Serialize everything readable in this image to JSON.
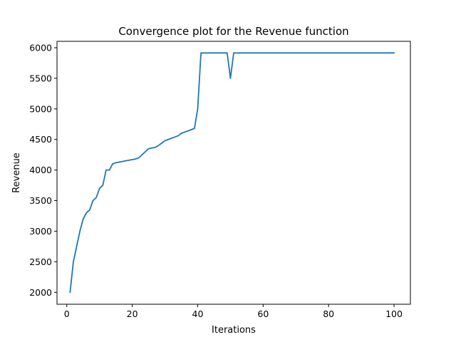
{
  "chart_data": {
    "type": "line",
    "title": "Convergence plot for the Revenue function",
    "xlabel": "Iterations",
    "ylabel": "Revenue",
    "xlim": [
      -3,
      105
    ],
    "ylim": [
      1805,
      6105
    ],
    "xticks": [
      0,
      20,
      40,
      60,
      80,
      100
    ],
    "yticks": [
      2000,
      2500,
      3000,
      3500,
      4000,
      4500,
      5000,
      5500,
      6000
    ],
    "grid": false,
    "legend": "none",
    "series": [
      {
        "color": "#1f77b4",
        "x": [
          1,
          2,
          3,
          4,
          5,
          6,
          7,
          8,
          9,
          10,
          11,
          12,
          13,
          14,
          15,
          16,
          17,
          18,
          19,
          20,
          21,
          22,
          23,
          24,
          25,
          26,
          27,
          28,
          29,
          30,
          31,
          32,
          33,
          34,
          35,
          36,
          37,
          38,
          39,
          40,
          41,
          42,
          43,
          44,
          45,
          46,
          47,
          48,
          49,
          50,
          51,
          52,
          53,
          54,
          55,
          56,
          57,
          58,
          59,
          60,
          61,
          62,
          63,
          64,
          65,
          66,
          67,
          68,
          69,
          70,
          71,
          72,
          73,
          74,
          75,
          76,
          77,
          78,
          79,
          80,
          81,
          82,
          83,
          84,
          85,
          86,
          87,
          88,
          89,
          90,
          91,
          92,
          93,
          94,
          95,
          96,
          97,
          98,
          99,
          100
        ],
        "y": [
          2000,
          2500,
          2750,
          3000,
          3200,
          3300,
          3350,
          3500,
          3550,
          3700,
          3750,
          4000,
          4000,
          4100,
          4120,
          4130,
          4140,
          4150,
          4160,
          4170,
          4180,
          4200,
          4250,
          4300,
          4350,
          4360,
          4370,
          4400,
          4440,
          4480,
          4500,
          4520,
          4540,
          4560,
          4600,
          4620,
          4640,
          4660,
          4680,
          5000,
          5915,
          5915,
          5915,
          5915,
          5915,
          5915,
          5915,
          5915,
          5915,
          5500,
          5915,
          5915,
          5915,
          5915,
          5915,
          5915,
          5915,
          5915,
          5915,
          5915,
          5915,
          5915,
          5915,
          5915,
          5915,
          5915,
          5915,
          5915,
          5915,
          5915,
          5915,
          5915,
          5915,
          5915,
          5915,
          5915,
          5915,
          5915,
          5915,
          5915,
          5915,
          5915,
          5915,
          5915,
          5915,
          5915,
          5915,
          5915,
          5915,
          5915,
          5915,
          5915,
          5915,
          5915,
          5915,
          5915,
          5915,
          5915,
          5915,
          5915
        ]
      }
    ]
  }
}
